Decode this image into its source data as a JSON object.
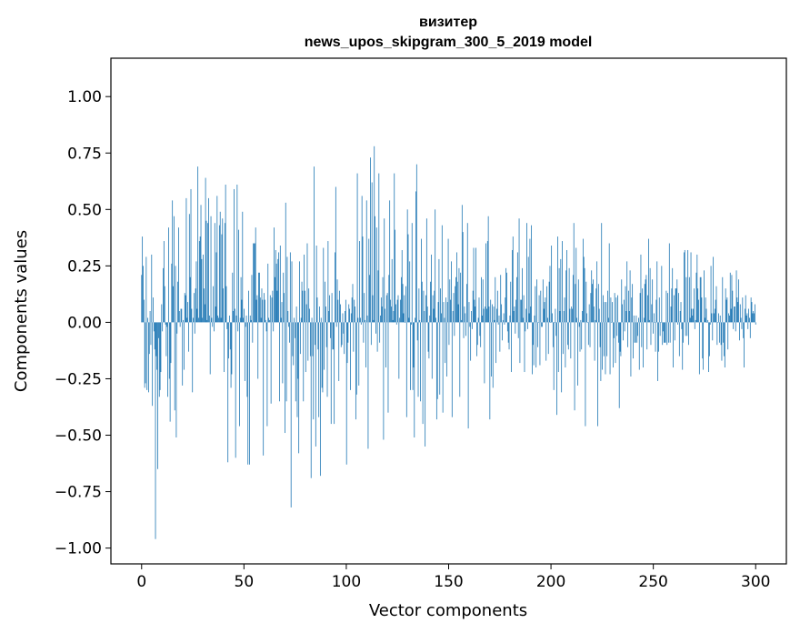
{
  "chart_data": {
    "type": "bar",
    "title_line1": "визитер",
    "title_line2": "news_upos_skipgram_300_5_2019 model",
    "xlabel": "Vector components",
    "ylabel": "Components values",
    "xlim": [
      -15,
      315
    ],
    "ylim": [
      -1.07,
      1.17
    ],
    "xticks": [
      0,
      50,
      100,
      150,
      200,
      250,
      300
    ],
    "yticks": [
      -1.0,
      -0.75,
      -0.5,
      -0.25,
      0.0,
      0.25,
      0.5,
      0.75,
      1.0
    ],
    "ytick_labels": [
      "−1.00",
      "−0.75",
      "−0.50",
      "−0.25",
      "0.00",
      "0.25",
      "0.50",
      "0.75",
      "1.00"
    ],
    "bar_color": "#1f77b4",
    "values": [
      0.21,
      0.38,
      0.25,
      0.1,
      -0.29,
      -0.27,
      0.29,
      -0.3,
      0.02,
      -0.31,
      -0.14,
      0.05,
      -0.1,
      0.3,
      -0.37,
      0.11,
      -0.04,
      -0.12,
      -0.96,
      -0.15,
      -0.21,
      -0.65,
      -0.07,
      -0.33,
      -0.3,
      -0.22,
      0.08,
      -0.04,
      0.24,
      0.36,
      0.16,
      -0.01,
      -0.15,
      -0.02,
      -0.33,
      0.42,
      -0.25,
      -0.44,
      -0.18,
      0.26,
      0.54,
      0.16,
      0.47,
      -0.39,
      0.25,
      -0.51,
      -0.05,
      0.18,
      0.42,
      0.05,
      -0.02,
      0.06,
      0.06,
      -0.28,
      0.01,
      -0.21,
      0.13,
      0.12,
      0.55,
      0.02,
      0.09,
      -0.13,
      0.48,
      0.2,
      0.59,
      0.06,
      -0.31,
      0.02,
      0.13,
      -0.05,
      0.15,
      0.27,
      0.06,
      0.69,
      0.02,
      0.36,
      0.38,
      0.52,
      0.28,
      0.02,
      0.3,
      0.15,
      0.08,
      0.64,
      0.45,
      0.01,
      0.44,
      0.55,
      0.03,
      -0.23,
      0.47,
      0.02,
      -0.02,
      0.16,
      -0.04,
      0.44,
      0.07,
      0.31,
      0.56,
      0.03,
      0.02,
      0.43,
      0.49,
      0.02,
      0.39,
      0.46,
      0.15,
      -0.22,
      0.44,
      0.61,
      0.16,
      -0.03,
      -0.62,
      -0.16,
      0.03,
      -0.12,
      -0.29,
      -0.23,
      0.22,
      0.05,
      0.59,
      0.06,
      -0.6,
      0.03,
      0.61,
      -0.04,
      0.41,
      -0.46,
      0.02,
      0.2,
      0.1,
      0.49,
      0.02,
      0.06,
      -0.26,
      -0.02,
      0.03,
      -0.33,
      -0.63,
      0.14,
      -0.63,
      0.03,
      0.01,
      0.21,
      -0.09,
      0.35,
      0.35,
      0.35,
      0.42,
      0.1,
      0.12,
      -0.25,
      0.22,
      0.22,
      0.11,
      0.02,
      0.15,
      0.1,
      -0.59,
      0.13,
      0.1,
      0.01,
      -0.04,
      -0.46,
      0.26,
      0.02,
      0.01,
      0.12,
      -0.36,
      0.11,
      0.14,
      -0.04,
      0.42,
      0.2,
      0.32,
      0.26,
      0.14,
      0.28,
      0.31,
      -0.35,
      0.34,
      0.02,
      0.09,
      -0.27,
      0.22,
      0.13,
      -0.49,
      0.53,
      -0.35,
      0.29,
      0.05,
      -0.02,
      -0.09,
      0.31,
      -0.82,
      0.27,
      -0.15,
      -0.19,
      0.02,
      -0.07,
      -0.35,
      0.07,
      -0.42,
      -0.25,
      -0.58,
      0.27,
      -0.14,
      0.02,
      0.18,
      0.14,
      -0.35,
      0.3,
      0.14,
      -0.22,
      0.08,
      0.35,
      -0.17,
      0.15,
      0.06,
      -0.15,
      -0.69,
      0.02,
      -0.15,
      -0.43,
      0.69,
      -0.1,
      -0.55,
      0.34,
      0.11,
      -0.12,
      -0.42,
      0.07,
      -0.68,
      0.02,
      -0.29,
      -0.31,
      0.33,
      -0.21,
      0.18,
      0.07,
      -0.11,
      -0.33,
      0.36,
      0.05,
      0.12,
      -0.07,
      -0.45,
      0.13,
      -0.12,
      -0.12,
      -0.45,
      0.31,
      0.6,
      -0.02,
      0.19,
      0.1,
      -0.26,
      0.14,
      0.08,
      -0.11,
      -0.1,
      0.04,
      -0.05,
      -0.14,
      0.05,
      0.1,
      -0.63,
      -0.18,
      -0.09,
      0.08,
      0.06,
      -0.3,
      0.04,
      0.11,
      0.17,
      -0.13,
      0.1,
      0.07,
      -0.43,
      -0.32,
      0.66,
      0.02,
      -0.28,
      0.36,
      0.02,
      -0.01,
      0.56,
      0.38,
      -0.09,
      0.13,
      0.01,
      -0.2,
      0.54,
      0.03,
      -0.56,
      0.37,
      0.21,
      0.73,
      -0.1,
      0.62,
      0.12,
      0.01,
      0.78,
      0.47,
      -0.05,
      0.42,
      -0.13,
      0.23,
      0.66,
      -0.09,
      0.03,
      0.11,
      0.07,
      0.2,
      -0.52,
      0.46,
      0.06,
      -0.2,
      0.12,
      0.13,
      -0.4,
      0.21,
      0.54,
      0.1,
      0.07,
      0.28,
      0.01,
      0.05,
      0.66,
      0.41,
      0.08,
      -0.01,
      0.1,
      0.12,
      -0.25,
      0.02,
      0.1,
      0.2,
      0.32,
      0.17,
      0.04,
      0.12,
      0.0,
      0.16,
      -0.42,
      0.5,
      0.39,
      0.02,
      0.27,
      -0.3,
      -0.01,
      0.44,
      -0.3,
      -0.2,
      -0.51,
      0.02,
      0.58,
      0.7,
      -0.08,
      -0.33,
      0.15,
      0.01,
      -0.35,
      0.37,
      0.18,
      -0.45,
      0.14,
      0.05,
      -0.55,
      0.12,
      0.46,
      0.07,
      -0.13,
      -0.16,
      0.03,
      0.18,
      0.3,
      -0.25,
      0.12,
      0.06,
      0.14,
      0.5,
      0.02,
      -0.43,
      -0.34,
      0.09,
      0.28,
      -0.32,
      0.15,
      0.04,
      0.43,
      -0.4,
      0.09,
      0.02,
      -0.18,
      0.11,
      -0.24,
      0.09,
      0.37,
      -0.1,
      0.19,
      0.1,
      0.27,
      -0.42,
      0.05,
      0.13,
      -0.06,
      0.16,
      0.2,
      0.31,
      0.18,
      0.08,
      0.24,
      -0.33,
      0.22,
      0.01,
      0.52,
      0.4,
      -0.07,
      0.07,
      0.04,
      -0.06,
      0.17,
      0.44,
      -0.47,
      0.09,
      -0.02,
      -0.17,
      0.05,
      -0.03,
      0.14,
      0.33,
      0.1,
      0.07,
      0.33,
      -0.15,
      -0.1,
      0.02,
      0.11,
      -0.06,
      -0.11,
      0.2,
      0.03,
      0.19,
      0.06,
      -0.27,
      0.07,
      0.35,
      0.06,
      0.36,
      0.47,
      0.07,
      -0.43,
      0.1,
      -0.24,
      0.08,
      -0.29,
      0.07,
      0.01,
      0.2,
      -0.18,
      0.06,
      0.14,
      -0.01,
      0.03,
      -0.13,
      0.21,
      0.08,
      -0.08,
      0.01,
      0.04,
      -0.01,
      0.11,
      0.24,
      0.22,
      -0.04,
      -0.09,
      -0.12,
      0.03,
      0.18,
      -0.22,
      0.32,
      0.38,
      0.05,
      0.07,
      -0.05,
      0.1,
      0.2,
      0.31,
      -0.07,
      0.46,
      -0.18,
      0.1,
      0.1,
      0.24,
      0.02,
      0.12,
      -0.22,
      -0.04,
      0.06,
      0.44,
      -0.03,
      0.29,
      0.04,
      0.37,
      0.07,
      0.43,
      -0.23,
      -0.1,
      -0.19,
      0.03,
      0.16,
      -0.2,
      0.19,
      -0.11,
      0.0,
      0.12,
      -0.19,
      0.14,
      -0.02,
      -0.02,
      0.19,
      0.06,
      0.09,
      0.11,
      -0.17,
      0.16,
      0.02,
      -0.14,
      0.18,
      0.25,
      0.0,
      0.34,
      0.04,
      -0.11,
      -0.3,
      0.0,
      0.06,
      -0.06,
      -0.41,
      0.38,
      -0.22,
      0.24,
      0.05,
      0.28,
      -0.31,
      0.36,
      -0.14,
      0.05,
      0.11,
      -0.2,
      0.23,
      0.32,
      -0.1,
      -0.12,
      0.24,
      0.06,
      -0.16,
      0.07,
      0.06,
      0.21,
      0.44,
      -0.39,
      0.17,
      0.33,
      0.02,
      -0.28,
      0.19,
      -0.02,
      -0.13,
      0.01,
      -0.12,
      0.05,
      0.37,
      0.29,
      0.24,
      -0.46,
      0.18,
      0.04,
      0.0,
      -0.1,
      0.08,
      -0.11,
      0.13,
      0.23,
      0.17,
      0.19,
      0.07,
      -0.17,
      0.01,
      0.15,
      0.27,
      -0.46,
      0.17,
      0.06,
      -0.11,
      -0.26,
      0.44,
      -0.21,
      0.12,
      -0.15,
      0.09,
      -0.23,
      0.09,
      -0.15,
      0.14,
      0.02,
      0.35,
      -0.23,
      0.11,
      0.0,
      0.09,
      -0.2,
      -0.07,
      0.13,
      -0.18,
      0.11,
      -0.06,
      0.12,
      -0.09,
      -0.38,
      -0.13,
      -0.15,
      0.19,
      0.08,
      -0.08,
      0.1,
      -0.04,
      0.16,
      0.05,
      0.27,
      -0.11,
      0.14,
      0.05,
      0.23,
      -0.24,
      0.11,
      0.17,
      -0.16,
      0.03,
      -0.09,
      -0.09,
      0.03,
      -0.09,
      -0.06,
      0.02,
      -0.21,
      0.13,
      0.3,
      -0.11,
      0.15,
      -0.2,
      0.02,
      0.17,
      0.19,
      0.21,
      -0.12,
      0.12,
      0.37,
      0.01,
      0.24,
      -0.1,
      0.08,
      0.19,
      -0.05,
      0.04,
      0.0,
      -0.13,
      0.1,
      0.27,
      -0.26,
      -0.13,
      0.11,
      -0.06,
      0.0,
      0.25,
      -0.1,
      -0.04,
      -0.09,
      -0.09,
      -0.09,
      0.14,
      -0.1,
      0.13,
      -0.09,
      0.35,
      -0.09,
      0.07,
      0.15,
      0.24,
      -0.2,
      0.12,
      -0.08,
      0.15,
      0.15,
      0.19,
      -0.01,
      0.13,
      -0.15,
      0.05,
      0.09,
      -0.03,
      -0.21,
      -0.09,
      0.31,
      0.32,
      -0.06,
      0.2,
      -0.06,
      0.32,
      -0.1,
      0.2,
      0.02,
      0.31,
      0.06,
      0.03,
      0.06,
      0.15,
      -0.03,
      0.01,
      0.22,
      0.3,
      0.15,
      0.1,
      -0.23,
      0.2,
      0.2,
      0.11,
      -0.16,
      -0.21,
      0.23,
      0.02,
      0.11,
      0.06,
      0.0,
      0.01,
      -0.22,
      -0.15,
      -0.01,
      0.25,
      0.04,
      -0.08,
      0.29,
      0.04,
      0.06,
      0.1,
      0.16,
      -0.1,
      0.0,
      0.04,
      -0.09,
      0.03,
      -0.1,
      -0.17,
      0.2,
      -0.09,
      -0.15,
      -0.2,
      0.15,
      0.1,
      0.11,
      -0.12,
      0.04,
      0.03,
      0.22,
      0.06,
      0.21,
      0.14,
      -0.03,
      0.07,
      0.07,
      -0.04,
      0.23,
      0.11,
      0.09,
      0.19,
      -0.08,
      0.08,
      0.02,
      -0.03,
      0.11,
      -0.07,
      -0.2,
      0.06,
      0.12,
      0.03,
      0.04,
      -0.03,
      0.06,
      0.02,
      -0.07,
      0.11,
      0.09,
      0.04,
      0.05,
      0.04,
      0.08,
      -0.01
    ]
  }
}
